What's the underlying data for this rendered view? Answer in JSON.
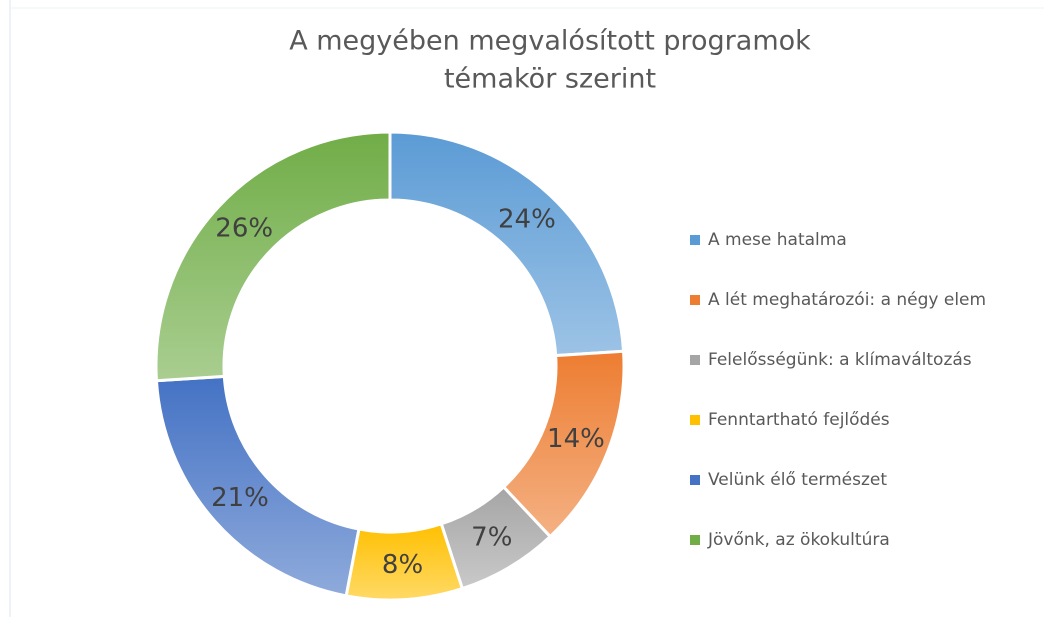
{
  "chart_data": {
    "type": "donut",
    "title": [
      "A megyében megvalósított programok",
      "témakör szerint"
    ],
    "categories": [
      "A mese hatalma",
      "A lét meghatározói: a négy elem",
      "Felelősségünk: a klímaváltozás",
      "Fenntartható fejlődés",
      "Velünk élő természet",
      "Jövőnk, az ökokultúra"
    ],
    "values": [
      24,
      14,
      7,
      8,
      21,
      26
    ],
    "value_labels": [
      "24%",
      "14%",
      "7%",
      "8%",
      "21%",
      "26%"
    ],
    "colors": [
      "#5b9bd5",
      "#ed7d31",
      "#a5a5a5",
      "#ffc000",
      "#4472c4",
      "#70ad47"
    ],
    "legend": "right"
  }
}
